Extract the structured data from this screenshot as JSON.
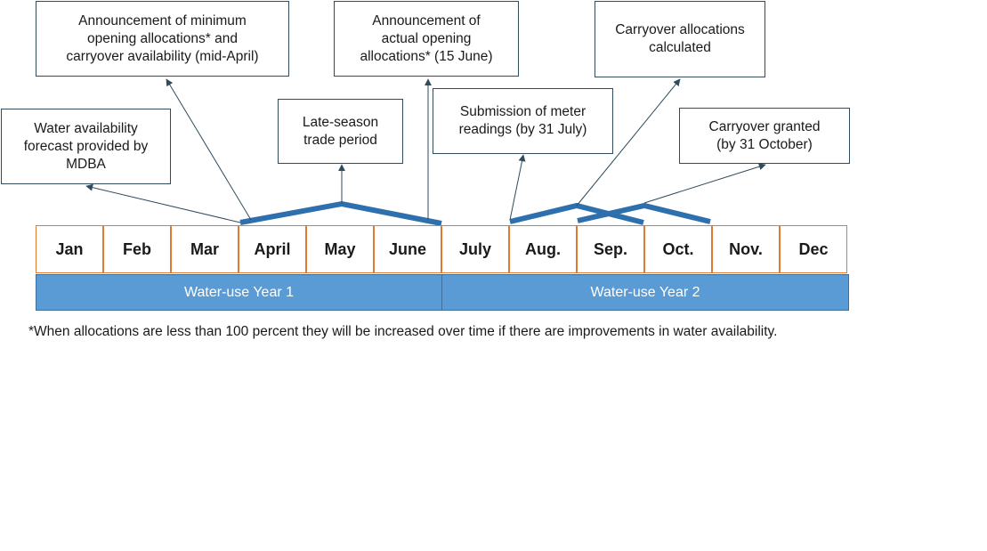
{
  "months": [
    "Jan",
    "Feb",
    "Mar",
    "April",
    "May",
    "June",
    "July",
    "Aug.",
    "Sep.",
    "Oct.",
    "Nov.",
    "Dec"
  ],
  "years": [
    "Water-use Year 1",
    "Water-use Year 2"
  ],
  "callouts": {
    "announce_min": "Announcement of minimum\nopening allocations* and\ncarryover availability (mid-April)",
    "announce_actual": "Announcement of\nactual opening\nallocations* (15 June)",
    "carryover_calc": "Carryover allocations\ncalculated",
    "water_forecast": "Water availability\nforecast provided by\nMDBA",
    "late_trade": "Late-season\ntrade period",
    "meter_readings": "Submission of meter\nreadings (by 31 July)",
    "carryover_granted": "Carryover granted\n(by 31 October)"
  },
  "footnote": "*When allocations are less than 100 percent they will be increased over time if there are improvements in water availability.",
  "colors": {
    "month_border": "#e07a2e",
    "year_fill": "#5b9bd5",
    "bracket": "#2e6fad",
    "arrow": "#2f4b5c"
  }
}
